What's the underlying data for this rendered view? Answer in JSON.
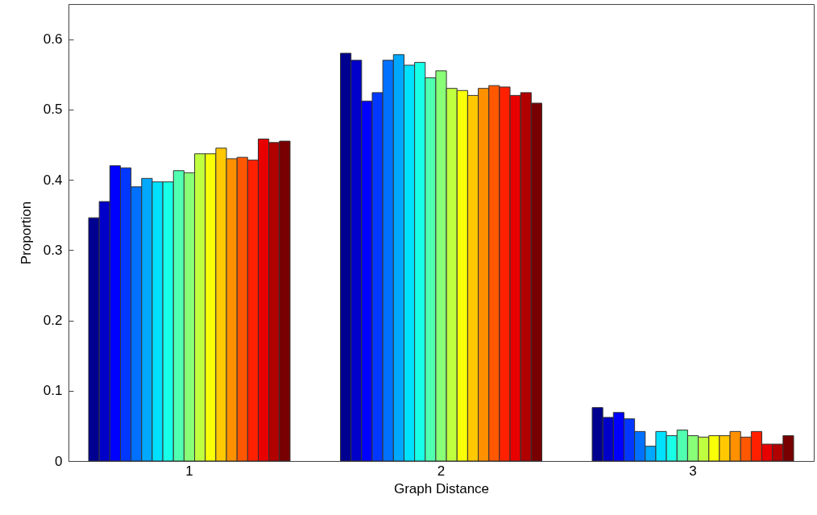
{
  "chart_data": {
    "type": "bar",
    "xlabel": "Graph Distance",
    "ylabel": "Proportion",
    "categories": [
      "1",
      "2",
      "3"
    ],
    "ylim": [
      0,
      0.65
    ],
    "yticks": [
      0,
      0.1,
      0.2,
      0.3,
      0.4,
      0.5,
      0.6
    ],
    "grid": false,
    "series": [
      {
        "color": "#000090",
        "values": [
          0.346,
          0.58,
          0.076
        ]
      },
      {
        "color": "#0000c8",
        "values": [
          0.369,
          0.57,
          0.062
        ]
      },
      {
        "color": "#0000ff",
        "values": [
          0.42,
          0.512,
          0.069
        ]
      },
      {
        "color": "#0038ff",
        "values": [
          0.417,
          0.524,
          0.06
        ]
      },
      {
        "color": "#0070ff",
        "values": [
          0.39,
          0.57,
          0.042
        ]
      },
      {
        "color": "#00a8ff",
        "values": [
          0.402,
          0.578,
          0.021
        ]
      },
      {
        "color": "#00e0ff",
        "values": [
          0.397,
          0.563,
          0.042
        ]
      },
      {
        "color": "#18ffe7",
        "values": [
          0.397,
          0.567,
          0.036
        ]
      },
      {
        "color": "#50ffaf",
        "values": [
          0.413,
          0.545,
          0.044
        ]
      },
      {
        "color": "#88ff77",
        "values": [
          0.41,
          0.555,
          0.036
        ]
      },
      {
        "color": "#c0ff3f",
        "values": [
          0.437,
          0.53,
          0.034
        ]
      },
      {
        "color": "#f8ff07",
        "values": [
          0.437,
          0.527,
          0.036
        ]
      },
      {
        "color": "#ffc800",
        "values": [
          0.445,
          0.52,
          0.036
        ]
      },
      {
        "color": "#ff9000",
        "values": [
          0.43,
          0.53,
          0.042
        ]
      },
      {
        "color": "#ff5800",
        "values": [
          0.432,
          0.534,
          0.034
        ]
      },
      {
        "color": "#ff2000",
        "values": [
          0.428,
          0.532,
          0.042
        ]
      },
      {
        "color": "#e80000",
        "values": [
          0.458,
          0.52,
          0.024
        ]
      },
      {
        "color": "#b00000",
        "values": [
          0.453,
          0.524,
          0.024
        ]
      },
      {
        "color": "#780000",
        "values": [
          0.455,
          0.509,
          0.036
        ]
      }
    ]
  }
}
